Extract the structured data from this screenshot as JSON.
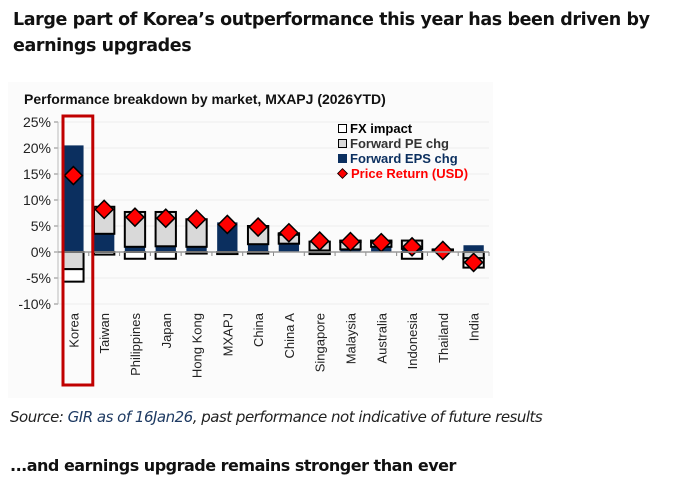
{
  "headline": "Large part of Korea’s outperformance this year has been driven by earnings upgrades",
  "source": {
    "prefix": "Source: ",
    "link_text": "GIR as of 16Jan26",
    "suffix": ", past performance not indicative of future results"
  },
  "subheadline": "...and earnings upgrade remains stronger than ever",
  "colors": {
    "eps": "#0b2f5f",
    "pe": "#d9d9d9",
    "fx": "#ffffff",
    "price": "#ff0000",
    "highlight": "#c00000",
    "eps_label": "#0b2f5f",
    "price_label": "#ff0000"
  },
  "chart_data": {
    "type": "bar",
    "stacked": true,
    "title": "Performance breakdown by market, MXAPJ (2026YTD)",
    "xlabel": "",
    "ylabel": "",
    "ylim": [
      -10,
      25
    ],
    "yticks": [
      25,
      20,
      15,
      10,
      5,
      0,
      -5,
      -10
    ],
    "ytick_labels": [
      "25%",
      "20%",
      "15%",
      "10%",
      "5%",
      "0%",
      "-5%",
      "-10%"
    ],
    "grid": true,
    "legend_position": "top-right",
    "highlighted_category": "Korea",
    "categories": [
      "Korea",
      "Taiwan",
      "Philippines",
      "Japan",
      "Hong Kong",
      "MXAPJ",
      "China",
      "China A",
      "Singapore",
      "Malaysia",
      "Australia",
      "Indonesia",
      "Thailand",
      "India"
    ],
    "series": [
      {
        "name": "Forward EPS chg",
        "kind": "bar",
        "values": [
          20.5,
          3.5,
          1.0,
          1.1,
          1.0,
          5.7,
          1.5,
          1.6,
          0.3,
          0.5,
          1.0,
          0.6,
          0.2,
          1.3
        ]
      },
      {
        "name": "Forward PE chg",
        "kind": "bar",
        "values": [
          -3.3,
          5.2,
          6.7,
          6.6,
          5.3,
          0.0,
          3.5,
          1.8,
          1.7,
          1.6,
          1.0,
          1.6,
          0.2,
          -1.2
        ]
      },
      {
        "name": "FX impact",
        "kind": "bar",
        "values": [
          -2.4,
          -0.5,
          -1.3,
          -1.3,
          -0.3,
          -0.4,
          -0.3,
          0.2,
          -0.4,
          0.1,
          0.2,
          -1.3,
          0.1,
          -1.8
        ]
      },
      {
        "name": "Price Return (USD)",
        "kind": "marker",
        "values": [
          14.7,
          8.2,
          6.7,
          6.5,
          6.3,
          5.3,
          4.8,
          3.7,
          2.1,
          2.0,
          1.8,
          1.0,
          0.3,
          -2.0
        ]
      }
    ],
    "legend": [
      {
        "label": "FX impact",
        "swatch": "box-white"
      },
      {
        "label": "Forward PE chg",
        "swatch": "box-gray"
      },
      {
        "label": "Forward EPS chg",
        "swatch": "box-navy"
      },
      {
        "label": "Price Return (USD)",
        "swatch": "diamond-red"
      }
    ]
  }
}
